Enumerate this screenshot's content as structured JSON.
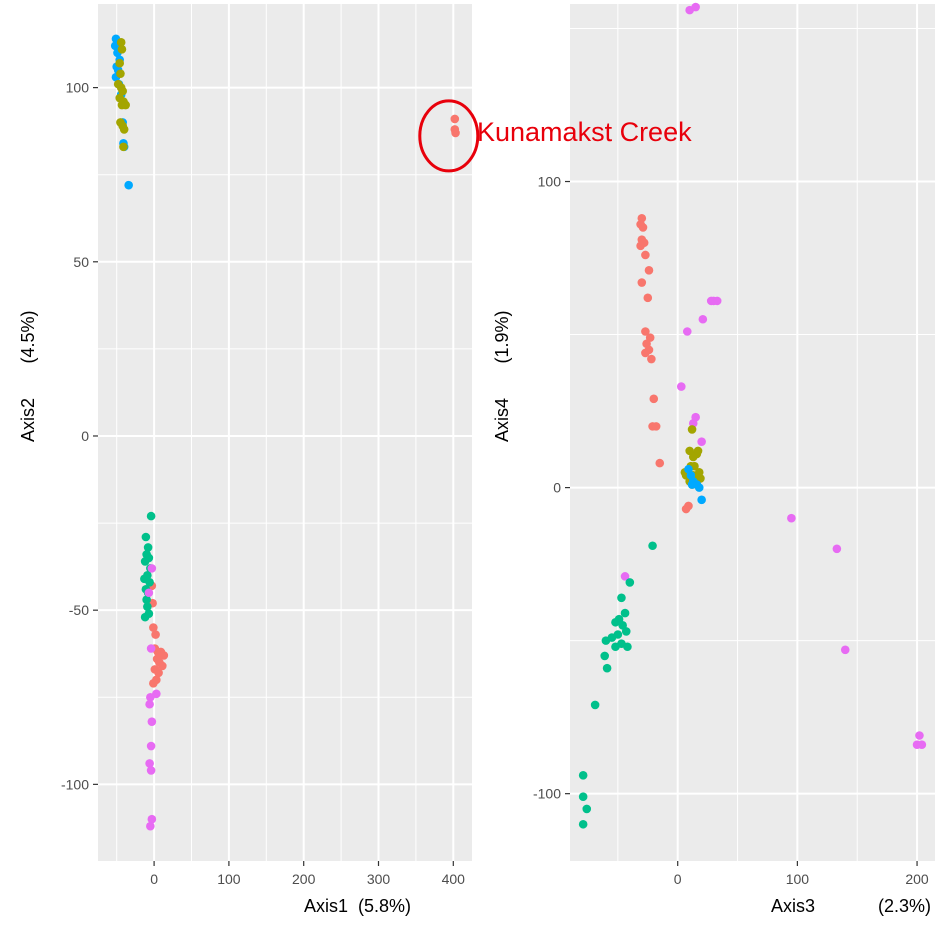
{
  "chart_data": [
    {
      "type": "scatter",
      "panel": "left",
      "xlabel": "Axis1",
      "xlabel_pct": "(5.8%)",
      "ylabel": "Axis2",
      "ylabel_pct": "(4.5%)",
      "xlim": [
        -75,
        425
      ],
      "ylim": [
        -122,
        124
      ],
      "xticks": [
        0,
        100,
        200,
        300,
        400
      ],
      "yticks": [
        -100,
        -50,
        0,
        50,
        100
      ],
      "grid": true,
      "background": "#ebebeb",
      "annotation": {
        "text": "Kunamakst Creek",
        "color": "#e8000b",
        "target": [
          402,
          89
        ]
      },
      "series": [
        {
          "color": "#00a9ff",
          "points": [
            [
              -51,
              114
            ],
            [
              -47,
              113
            ],
            [
              -52,
              112
            ],
            [
              -49,
              110
            ],
            [
              -46,
              108
            ],
            [
              -50,
              106
            ],
            [
              -48,
              105
            ],
            [
              -51,
              103
            ],
            [
              -47,
              101
            ],
            [
              -44,
              98
            ],
            [
              -42,
              90
            ],
            [
              -41,
              84
            ],
            [
              -40,
              83
            ],
            [
              -34,
              72
            ]
          ]
        },
        {
          "color": "#a3a500",
          "points": [
            [
              -44,
              113
            ],
            [
              -43,
              111
            ],
            [
              -46,
              107
            ],
            [
              -45,
              104
            ],
            [
              -48,
              101
            ],
            [
              -44,
              100
            ],
            [
              -42,
              99
            ],
            [
              -46,
              97
            ],
            [
              -41,
              96
            ],
            [
              -43,
              95
            ],
            [
              -38,
              95
            ],
            [
              -45,
              90
            ],
            [
              -42,
              89
            ],
            [
              -40,
              88
            ],
            [
              -41,
              83
            ]
          ]
        },
        {
          "color": "#f8766d",
          "points": [
            [
              402,
              91
            ],
            [
              402,
              88
            ],
            [
              403,
              87
            ],
            [
              -3,
              -43
            ],
            [
              -2,
              -48
            ],
            [
              -1,
              -55
            ],
            [
              2,
              -57
            ],
            [
              1,
              -61
            ],
            [
              5,
              -62
            ],
            [
              9,
              -62
            ],
            [
              13,
              -63
            ],
            [
              4,
              -64
            ],
            [
              7,
              -65
            ],
            [
              11,
              -66
            ],
            [
              1,
              -67
            ],
            [
              6,
              -68
            ],
            [
              3,
              -70
            ],
            [
              -1,
              -71
            ]
          ]
        },
        {
          "color": "#00c08b",
          "points": [
            [
              -4,
              -23
            ],
            [
              -11,
              -29
            ],
            [
              -8,
              -32
            ],
            [
              -10,
              -34
            ],
            [
              -7,
              -35
            ],
            [
              -12,
              -36
            ],
            [
              -5,
              -38
            ],
            [
              -9,
              -40
            ],
            [
              -13,
              -41
            ],
            [
              -6,
              -42
            ],
            [
              -11,
              -44
            ],
            [
              -8,
              -45
            ],
            [
              -10,
              -47
            ],
            [
              -9,
              -49
            ],
            [
              -7,
              -51
            ],
            [
              -12,
              -52
            ]
          ]
        },
        {
          "color": "#e76bf3",
          "points": [
            [
              -3,
              -38
            ],
            [
              -7,
              -45
            ],
            [
              -4,
              -61
            ],
            [
              3,
              -74
            ],
            [
              -5,
              -75
            ],
            [
              -6,
              -77
            ],
            [
              -3,
              -82
            ],
            [
              -4,
              -89
            ],
            [
              -6,
              -94
            ],
            [
              -4,
              -96
            ],
            [
              -3,
              -110
            ],
            [
              -5,
              -112
            ]
          ]
        }
      ]
    },
    {
      "type": "scatter",
      "panel": "right",
      "xlabel": "Axis3",
      "xlabel_pct": "(2.3%)",
      "ylabel": "Axis4",
      "ylabel_pct": "(1.9%)",
      "xlim": [
        -90,
        215
      ],
      "ylim": [
        -122,
        158
      ],
      "xticks": [
        0,
        100,
        200
      ],
      "yticks": [
        -100,
        0,
        100
      ],
      "grid": true,
      "background": "#ebebeb",
      "series": [
        {
          "color": "#f8766d",
          "points": [
            [
              -30,
              88
            ],
            [
              -31,
              86
            ],
            [
              -29,
              85
            ],
            [
              -30,
              81
            ],
            [
              -28,
              80
            ],
            [
              -31,
              79
            ],
            [
              -27,
              76
            ],
            [
              -24,
              71
            ],
            [
              -30,
              67
            ],
            [
              -25,
              62
            ],
            [
              -27,
              51
            ],
            [
              -23,
              49
            ],
            [
              -26,
              47
            ],
            [
              -24,
              45
            ],
            [
              -27,
              44
            ],
            [
              -22,
              42
            ],
            [
              -20,
              29
            ],
            [
              -21,
              20
            ],
            [
              -18,
              20
            ],
            [
              -15,
              8
            ],
            [
              9,
              -6
            ],
            [
              7,
              -7
            ]
          ]
        },
        {
          "color": "#e76bf3",
          "points": [
            [
              10,
              156
            ],
            [
              15,
              157
            ],
            [
              28,
              61
            ],
            [
              30,
              61
            ],
            [
              33,
              61
            ],
            [
              21,
              55
            ],
            [
              8,
              51
            ],
            [
              3,
              33
            ],
            [
              15,
              23
            ],
            [
              13,
              21
            ],
            [
              20,
              15
            ],
            [
              -44,
              -29
            ],
            [
              95,
              -10
            ],
            [
              133,
              -20
            ],
            [
              140,
              -53
            ],
            [
              202,
              -81
            ],
            [
              204,
              -84
            ],
            [
              200,
              -84
            ]
          ]
        },
        {
          "color": "#a3a500",
          "points": [
            [
              12,
              19
            ],
            [
              16,
              11
            ],
            [
              13,
              10
            ],
            [
              10,
              12
            ],
            [
              17,
              12
            ],
            [
              11,
              7
            ],
            [
              14,
              7
            ],
            [
              18,
              5
            ],
            [
              13,
              4
            ],
            [
              9,
              5
            ],
            [
              7,
              4
            ],
            [
              11,
              3
            ],
            [
              15,
              3
            ],
            [
              19,
              3
            ],
            [
              10,
              2
            ],
            [
              16,
              1
            ],
            [
              6,
              5
            ],
            [
              12,
              1
            ]
          ]
        },
        {
          "color": "#00a9ff",
          "points": [
            [
              9,
              6
            ],
            [
              11,
              4
            ],
            [
              13,
              2
            ],
            [
              16,
              1
            ],
            [
              18,
              0
            ],
            [
              12,
              1
            ],
            [
              20,
              -4
            ]
          ]
        },
        {
          "color": "#00c08b",
          "points": [
            [
              -21,
              -19
            ],
            [
              -40,
              -31
            ],
            [
              -47,
              -36
            ],
            [
              -44,
              -41
            ],
            [
              -49,
              -43
            ],
            [
              -52,
              -44
            ],
            [
              -46,
              -45
            ],
            [
              -43,
              -47
            ],
            [
              -50,
              -48
            ],
            [
              -55,
              -49
            ],
            [
              -47,
              -51
            ],
            [
              -52,
              -52
            ],
            [
              -42,
              -52
            ],
            [
              -60,
              -50
            ],
            [
              -61,
              -55
            ],
            [
              -59,
              -59
            ],
            [
              -69,
              -71
            ],
            [
              -79,
              -94
            ],
            [
              -79,
              -101
            ],
            [
              -76,
              -105
            ],
            [
              -79,
              -110
            ]
          ]
        }
      ]
    }
  ]
}
